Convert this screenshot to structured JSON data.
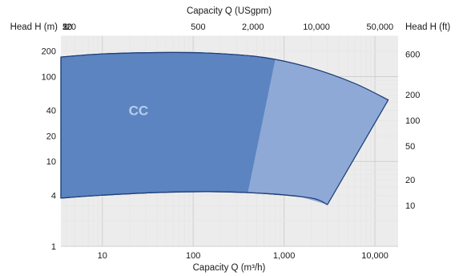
{
  "chart_data": {
    "type": "area",
    "xlabel_bottom": "Capacity Q (m³/h)",
    "xlabel_top": "Capacity Q (USgpm)",
    "ylabel_left": "Head H (m)",
    "ylabel_right": "Head H (ft)",
    "x_scale": "log",
    "y_scale": "log",
    "xlim": [
      3.5,
      18000
    ],
    "ylim": [
      1,
      300
    ],
    "grid": true,
    "x_ticks_bottom": [
      {
        "value": 10,
        "label": "10"
      },
      {
        "value": 100,
        "label": "100"
      },
      {
        "value": 1000,
        "label": "1,000"
      },
      {
        "value": 10000,
        "label": "10,000"
      }
    ],
    "x_ticks_top": [
      {
        "value": 2,
        "label": "2"
      },
      {
        "value": 5,
        "label": "5"
      },
      {
        "value": 10,
        "label": "10"
      },
      {
        "value": 20,
        "label": "20"
      },
      {
        "value": 500,
        "label": "500"
      },
      {
        "value": 2000,
        "label": "2,000"
      },
      {
        "value": 10000,
        "label": "10,000"
      },
      {
        "value": 50000,
        "label": "50,000"
      }
    ],
    "y_ticks_left": [
      {
        "value": 1,
        "label": "1"
      },
      {
        "value": 4,
        "label": "4"
      },
      {
        "value": 10,
        "label": "10"
      },
      {
        "value": 20,
        "label": "20"
      },
      {
        "value": 40,
        "label": "40"
      },
      {
        "value": 100,
        "label": "100"
      },
      {
        "value": 200,
        "label": "200"
      }
    ],
    "y_ticks_right": [
      {
        "value": 10,
        "label": "10"
      },
      {
        "value": 20,
        "label": "20"
      },
      {
        "value": 50,
        "label": "50"
      },
      {
        "value": 100,
        "label": "100"
      },
      {
        "value": 200,
        "label": "200"
      },
      {
        "value": 600,
        "label": "600"
      }
    ],
    "regions": [
      {
        "name": "CC",
        "color": "#5b84c1",
        "upper": [
          [
            3.5,
            170
          ],
          [
            10,
            185
          ],
          [
            40,
            192
          ],
          [
            150,
            189
          ],
          [
            600,
            168
          ],
          [
            2000,
            126
          ],
          [
            6000,
            83
          ],
          [
            14000,
            53
          ]
        ],
        "lower": [
          [
            3.5,
            3.7
          ],
          [
            10,
            4.0
          ],
          [
            40,
            4.3
          ],
          [
            150,
            4.4
          ],
          [
            600,
            4.2
          ],
          [
            2000,
            3.7
          ],
          [
            3000,
            3.1
          ]
        ]
      },
      {
        "name": "",
        "color": "#8ea9d6",
        "upper": [
          [
            800,
            160
          ],
          [
            2000,
            126
          ],
          [
            6000,
            83
          ],
          [
            14000,
            53
          ]
        ],
        "lower": [
          [
            400,
            4.35
          ],
          [
            1200,
            4.0
          ],
          [
            3000,
            3.1
          ]
        ]
      }
    ],
    "annotations": [
      {
        "text": "CC",
        "x": 25,
        "y": 40
      }
    ]
  },
  "colors": {
    "main_region": "#5b84c1",
    "extension_region": "#8ea9d6",
    "outline": "#1f3f7a",
    "grid_major": "#cfcfcf",
    "grid_minor": "#e6e6e6",
    "plot_bg": "#ececec"
  }
}
